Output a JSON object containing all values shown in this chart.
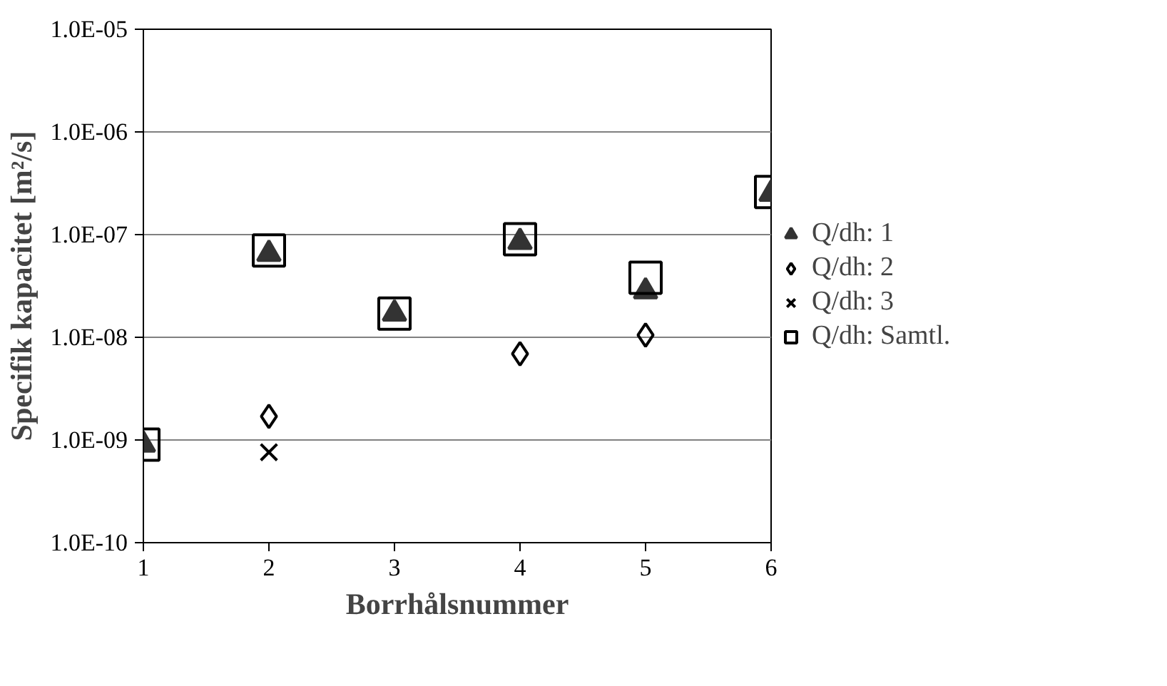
{
  "chart_data": {
    "type": "scatter",
    "xlabel": "Borrhålsnummer",
    "ylabel": "Specifik kapacitet [m²/s]",
    "x": [
      1,
      2,
      3,
      4,
      5,
      6
    ],
    "series": [
      {
        "name": "Q/dh: 1",
        "color": "#333333",
        "marker": "triangle",
        "values": [
          9e-10,
          6.5e-08,
          1.7e-08,
          8.5e-08,
          2.8e-08,
          2.5e-07
        ]
      },
      {
        "name": "Q/dh: 2",
        "color": "#000000",
        "marker": "diamond",
        "values": [
          null,
          1.7e-09,
          null,
          6.9e-09,
          1.05e-08,
          null
        ]
      },
      {
        "name": "Q/dh: 3",
        "color": "#000000",
        "marker": "cross",
        "values": [
          null,
          7.6e-10,
          null,
          null,
          null,
          null
        ]
      },
      {
        "name": "Q/dh: Samtl.",
        "color": "#000000",
        "marker": "square",
        "values": [
          9e-10,
          7e-08,
          1.7e-08,
          9e-08,
          3.8e-08,
          2.6e-07
        ]
      }
    ],
    "log": "y",
    "xlim": [
      1,
      6
    ],
    "xticks": [
      1,
      2,
      3,
      4,
      5,
      6
    ],
    "ylim": [
      1e-10,
      1e-05
    ],
    "yticks": [
      {
        "value": 1e-10,
        "label": "1.0E-10"
      },
      {
        "value": 1e-09,
        "label": "1.0E-09"
      },
      {
        "value": 1e-08,
        "label": "1.0E-08"
      },
      {
        "value": 1e-07,
        "label": "1.0E-07"
      },
      {
        "value": 1e-06,
        "label": "1.0E-06"
      },
      {
        "value": 1e-05,
        "label": "1.0E-05"
      }
    ],
    "grid": "y",
    "legend": "right"
  }
}
